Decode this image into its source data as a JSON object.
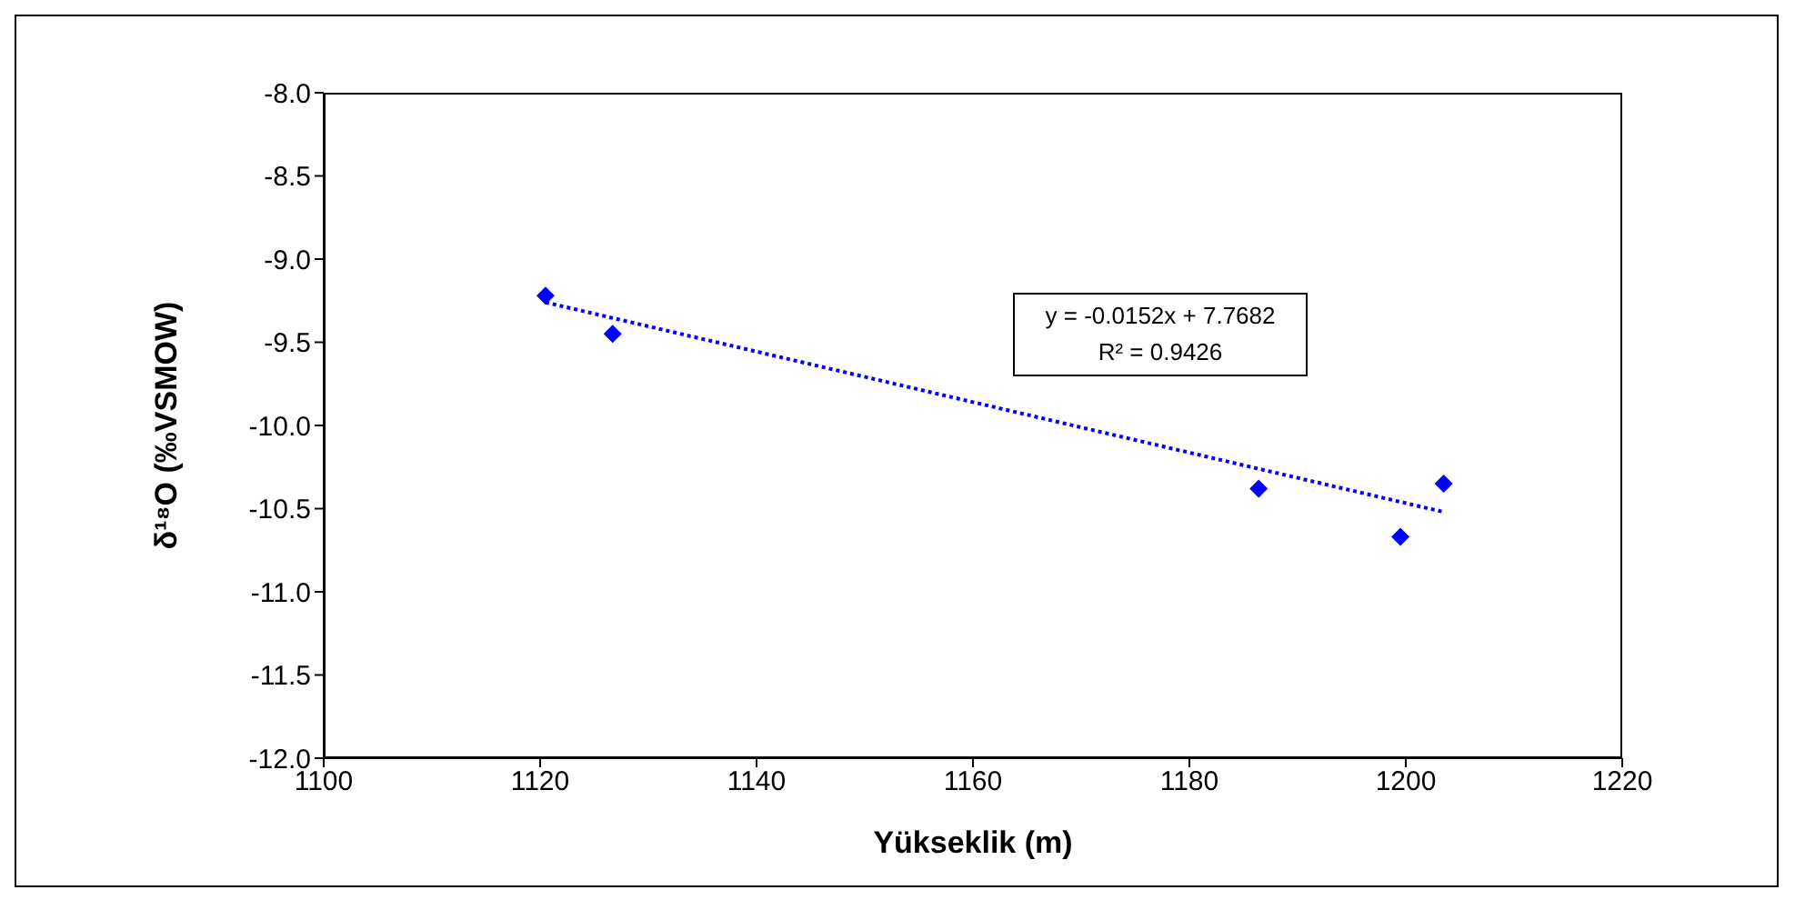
{
  "chart_data": {
    "type": "scatter",
    "xlabel": "Yükseklik (m)",
    "ylabel": "δ¹⁸O (‰VSMOW)",
    "x": [
      1120.5,
      1126.7,
      1186.4,
      1199.5,
      1203.5
    ],
    "series": [
      {
        "color": "#0000ff",
        "values": [
          -9.22,
          -9.45,
          -10.38,
          -10.67,
          -10.35
        ],
        "marker": "diamond"
      },
      {
        "type": "line",
        "color": "#0000ff",
        "x": [
          1120.5,
          1203.5
        ],
        "values": [
          -9.26,
          -10.52
        ],
        "line_style": "dotted",
        "marker": "none"
      }
    ],
    "xlim": [
      1100,
      1220
    ],
    "xticks": [
      1100,
      1120,
      1140,
      1160,
      1180,
      1200,
      1220
    ],
    "ylim": [
      -12,
      -8
    ],
    "yticks": [
      {
        "value": -12,
        "label": "-12.0"
      },
      {
        "value": -11.5,
        "label": "-11.5"
      },
      {
        "value": -11,
        "label": "-11.0"
      },
      {
        "value": -10.5,
        "label": "-10.5"
      },
      {
        "value": -10,
        "label": "-10.0"
      },
      {
        "value": -9.5,
        "label": "-9.5"
      },
      {
        "value": -9,
        "label": "-9.0"
      },
      {
        "value": -8.5,
        "label": "-8.5"
      },
      {
        "value": -8,
        "label": "-8.0"
      }
    ],
    "grid": false,
    "legend": false,
    "annotations": [
      "y = -0.0152x + 7.7682",
      "R² = 0.9426"
    ]
  }
}
